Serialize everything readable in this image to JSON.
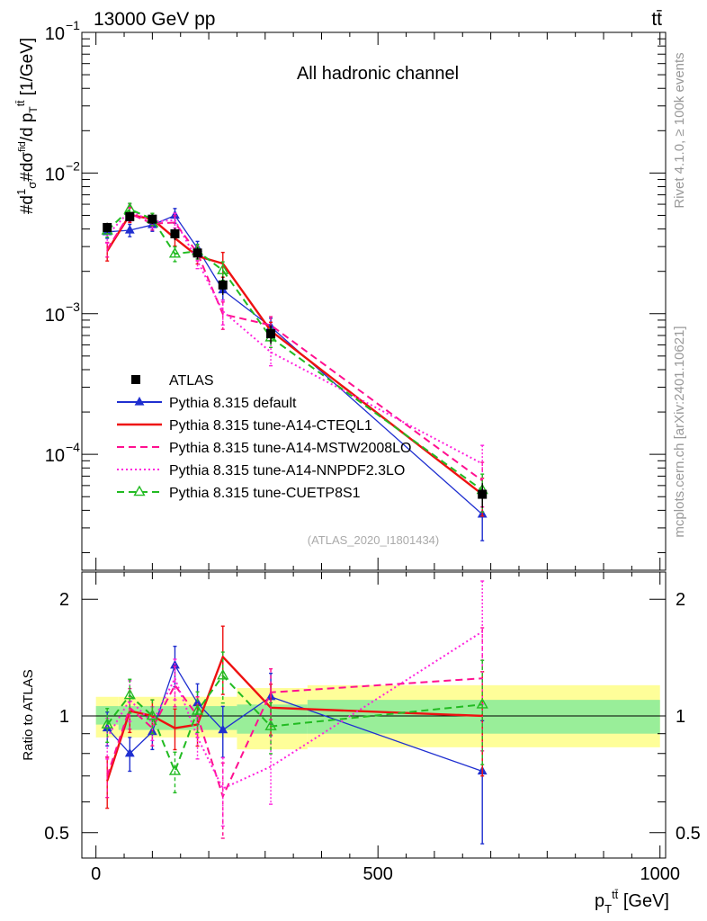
{
  "header": {
    "energy_label": "13000 GeV pp",
    "process_label": "tt̄",
    "channel_label": "All hadronic channel",
    "analysis_id": "(ATLAS_2020_I1801434)",
    "rivet_label": "Rivet 4.1.0, ≥ 100k events",
    "site_label": "mcplots.cern.ch [arXiv:2401.10621]"
  },
  "chart_data": {
    "type": "line",
    "x_unit": "GeV",
    "top_panel": {
      "ylabel": "#d1/σ#dσ^fid/d p_T^tt̄ [1/GeV]",
      "yscale": "log",
      "ylim": [
        1.5e-05,
        0.1
      ],
      "yticks": [
        {
          "value": 0.1,
          "label": "10",
          "exp": "−1"
        },
        {
          "value": 0.01,
          "label": "10",
          "exp": "−2"
        },
        {
          "value": 0.001,
          "label": "10",
          "exp": "−3"
        },
        {
          "value": 0.0001,
          "label": "10",
          "exp": "−4"
        }
      ]
    },
    "bottom_panel": {
      "ylabel": "Ratio to ATLAS",
      "yscale": "log",
      "ylim": [
        0.43,
        2.35
      ],
      "yticks": [
        {
          "value": 2,
          "label": "2"
        },
        {
          "value": 1,
          "label": "1"
        },
        {
          "value": 0.5,
          "label": "0.5"
        }
      ],
      "band_yellow": [
        {
          "x0": 0,
          "x1": 40,
          "lo": 0.88,
          "hi": 1.12
        },
        {
          "x0": 40,
          "x1": 250,
          "lo": 0.88,
          "hi": 1.12
        },
        {
          "x0": 250,
          "x1": 375,
          "lo": 0.82,
          "hi": 1.18
        },
        {
          "x0": 375,
          "x1": 1000,
          "lo": 0.83,
          "hi": 1.2
        }
      ],
      "band_green": [
        {
          "x0": 0,
          "x1": 40,
          "lo": 0.95,
          "hi": 1.06
        },
        {
          "x0": 40,
          "x1": 250,
          "lo": 0.92,
          "hi": 1.06
        },
        {
          "x0": 250,
          "x1": 375,
          "lo": 0.9,
          "hi": 1.07
        },
        {
          "x0": 375,
          "x1": 1000,
          "lo": 0.9,
          "hi": 1.1
        }
      ]
    },
    "xlabel": "p_T^tt̄ [GeV]",
    "xlim": [
      -25,
      1010
    ],
    "xticks": [
      0,
      500,
      1000
    ],
    "x": [
      20,
      60,
      100,
      140,
      180,
      225,
      310,
      685
    ],
    "data": {
      "name": "ATLAS",
      "values": [
        0.0041,
        0.0049,
        0.0047,
        0.0037,
        0.0027,
        0.0016,
        0.00072,
        5.2e-05
      ],
      "rel_err": [
        0.08,
        0.08,
        0.08,
        0.1,
        0.1,
        0.15,
        0.15,
        0.2
      ]
    },
    "series": [
      {
        "name": "Pythia 8.315 default",
        "color": "#1f2fd0",
        "style": "solid",
        "marker": "triangle-filled",
        "ratio": [
          0.93,
          0.8,
          0.91,
          1.35,
          1.08,
          0.92,
          1.12,
          0.72
        ],
        "ratio_err": [
          0.1,
          0.1,
          0.1,
          0.12,
          0.12,
          0.15,
          0.15,
          0.35
        ]
      },
      {
        "name": "Pythia 8.315 tune-A14-CTEQL1",
        "color": "#ee1111",
        "style": "solid",
        "marker": "none",
        "ratio": [
          0.68,
          1.03,
          1.0,
          0.93,
          0.95,
          1.42,
          1.05,
          1.0
        ],
        "ratio_err": [
          0.15,
          0.12,
          0.1,
          0.12,
          0.12,
          0.2,
          0.15,
          0.3
        ]
      },
      {
        "name": "Pythia 8.315 tune-A14-MSTW2008LO",
        "color": "#ff1090",
        "style": "dashed",
        "marker": "none",
        "ratio": [
          0.7,
          1.05,
          0.93,
          1.2,
          1.0,
          0.62,
          1.15,
          1.25
        ],
        "ratio_err": [
          0.12,
          0.12,
          0.1,
          0.12,
          0.12,
          0.22,
          0.15,
          0.35
        ]
      },
      {
        "name": "Pythia 8.315 tune-A14-NNPDF2.3LO",
        "color": "#ff22dd",
        "style": "dotted",
        "marker": "none",
        "ratio": [
          0.88,
          1.1,
          0.96,
          1.25,
          0.88,
          0.65,
          0.74,
          1.65
        ],
        "ratio_err": [
          0.12,
          0.12,
          0.1,
          0.12,
          0.12,
          0.2,
          0.2,
          0.35
        ]
      },
      {
        "name": "Pythia 8.315 tune-CUETP8S1",
        "color": "#22bb22",
        "style": "dashed",
        "marker": "triangle-open",
        "ratio": [
          0.95,
          1.13,
          1.0,
          0.72,
          1.03,
          1.27,
          0.94,
          1.07
        ],
        "ratio_err": [
          0.1,
          0.1,
          0.1,
          0.12,
          0.12,
          0.15,
          0.15,
          0.3
        ]
      }
    ]
  }
}
